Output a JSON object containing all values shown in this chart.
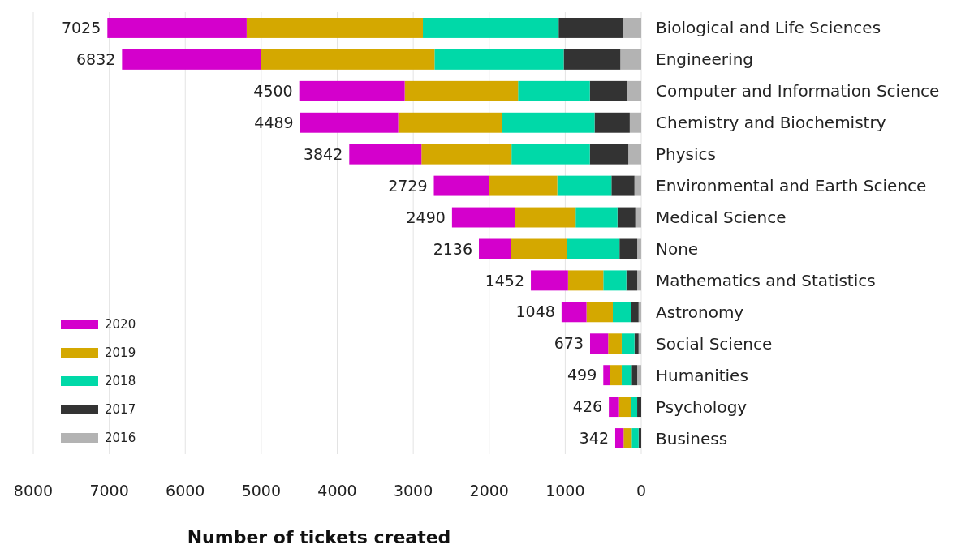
{
  "chart_data": {
    "type": "bar",
    "orientation": "horizontal",
    "stacked": true,
    "xlabel": "Number of tickets created",
    "categories": [
      "Biological and Life Sciences",
      "Engineering",
      "Computer and Information Science",
      "Chemistry and Biochemistry",
      "Physics",
      "Environmental and Earth Science",
      "Medical Science",
      "None",
      "Mathematics and Statistics",
      "Astronomy",
      "Social Science",
      "Humanities",
      "Psychology",
      "Business"
    ],
    "series": [
      {
        "name": "2016",
        "color": "#b3b3b3",
        "values": [
          235,
          275,
          184,
          151,
          170,
          89,
          78,
          53,
          53,
          35,
          35,
          53,
          0,
          0
        ]
      },
      {
        "name": "2017",
        "color": "#333333",
        "values": [
          852,
          745,
          492,
          463,
          506,
          303,
          235,
          233,
          143,
          101,
          54,
          72,
          53,
          35
        ]
      },
      {
        "name": "2018",
        "color": "#00d9a8",
        "values": [
          1786,
          1700,
          945,
          1213,
          1031,
          713,
          550,
          695,
          303,
          238,
          168,
          132,
          83,
          90
        ]
      },
      {
        "name": "2019",
        "color": "#d4a800",
        "values": [
          2319,
          2282,
          1491,
          1371,
          1185,
          892,
          795,
          738,
          464,
          346,
          178,
          153,
          156,
          107
        ]
      },
      {
        "name": "2020",
        "color": "#d400cc",
        "values": [
          1833,
          1830,
          1388,
          1291,
          950,
          732,
          832,
          417,
          489,
          328,
          238,
          89,
          134,
          110
        ]
      }
    ],
    "totals": [
      "7025",
      "6832",
      "4500",
      "4489",
      "3842",
      "2729",
      "2490",
      "2136",
      "1452",
      "1048",
      "673",
      "499",
      "426",
      "342"
    ],
    "xlim": [
      8000,
      0
    ],
    "xticks": [
      8000,
      7000,
      6000,
      5000,
      4000,
      3000,
      2000,
      1000,
      0
    ],
    "grid": "x",
    "legend": "bottom left"
  }
}
